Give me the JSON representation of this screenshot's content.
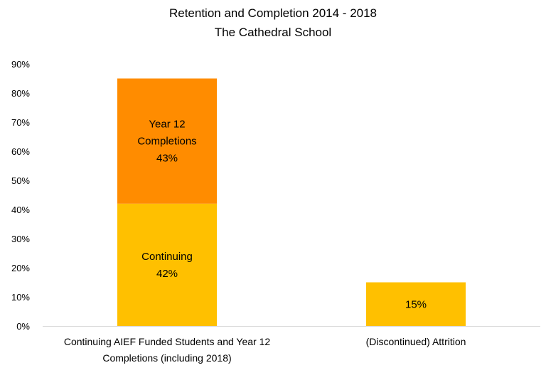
{
  "chart_data": {
    "type": "bar",
    "stacked": true,
    "title": "Retention and Completion 2014 - 2018",
    "subtitle": "The Cathedral School",
    "xlabel": "",
    "ylabel": "",
    "ylim": [
      0,
      90
    ],
    "ytick_step": 10,
    "ytick_labels": [
      "0%",
      "10%",
      "20%",
      "30%",
      "40%",
      "50%",
      "60%",
      "70%",
      "80%",
      "90%"
    ],
    "grid": false,
    "legend": "none",
    "categories": [
      [
        "Continuing AIEF Funded Students and Year 12",
        "Completions (including 2018)"
      ],
      [
        "(Discontinued) Attrition"
      ]
    ],
    "bars": [
      {
        "segments": [
          {
            "value": 42,
            "label_lines": [
              "Continuing",
              "42%"
            ],
            "color": "#FFC000"
          },
          {
            "value": 43,
            "label_lines": [
              "Year 12",
              "Completions",
              "43%"
            ],
            "color": "#FF8C00"
          }
        ]
      },
      {
        "segments": [
          {
            "value": 15,
            "label_lines": [
              "15%"
            ],
            "color": "#FFC000"
          }
        ]
      }
    ]
  }
}
